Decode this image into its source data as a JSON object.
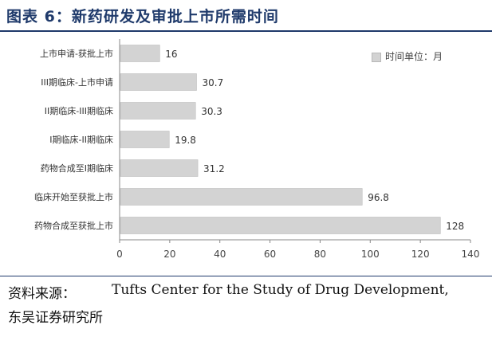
{
  "header": {
    "title": "图表 6：新药研发及审批上市所需时间"
  },
  "chart_data": {
    "type": "bar",
    "orientation": "horizontal",
    "categories": [
      "上市申请-获批上市",
      "III期临床-上市申请",
      "II期临床-III期临床",
      "I期临床-II期临床",
      "药物合成至I期临床",
      "临床开始至获批上市",
      "药物合成至获批上市"
    ],
    "values": [
      16,
      30.7,
      30.3,
      19.8,
      31.2,
      96.8,
      128
    ],
    "data_labels": [
      "16",
      "30.7",
      "30.3",
      "19.8",
      "31.2",
      "96.8",
      "128"
    ],
    "xlim": [
      0,
      140
    ],
    "xticks": [
      0,
      20,
      40,
      60,
      80,
      100,
      120,
      140
    ],
    "grid": false,
    "legend": {
      "label": "时间单位：月",
      "placement": "top-right"
    },
    "colors": {
      "bar": "#d3d3d3",
      "bar_edge": "#bdbdbd",
      "axis": "#888888"
    }
  },
  "footer": {
    "source_label": "资料来源：",
    "source_text": "Tufts Center for the Study of Drug Development,",
    "source_text_2": "东吴证券研究所"
  }
}
